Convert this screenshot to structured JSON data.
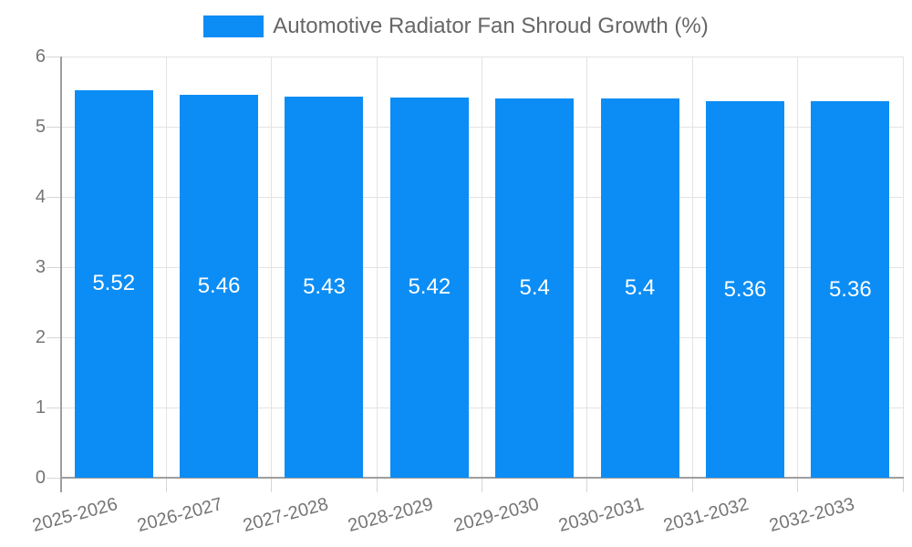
{
  "chart_data": {
    "type": "bar",
    "title": "Automotive Radiator Fan Shroud Growth (%)",
    "categories": [
      "2025-2026",
      "2026-2027",
      "2027-2028",
      "2028-2029",
      "2029-2030",
      "2030-2031",
      "2031-2032",
      "2032-2033"
    ],
    "values": [
      5.52,
      5.46,
      5.43,
      5.42,
      5.4,
      5.4,
      5.36,
      5.36
    ],
    "value_labels": [
      "5.52",
      "5.46",
      "5.43",
      "5.42",
      "5.4",
      "5.4",
      "5.36",
      "5.36"
    ],
    "xlabel": "",
    "ylabel": "",
    "ylim": [
      0,
      6
    ],
    "yticks": [
      0,
      1,
      2,
      3,
      4,
      5,
      6
    ],
    "grid": true,
    "legend_position": "top-center",
    "colors": {
      "bar": "#0b8df5",
      "value_label": "#ffffff",
      "tick_text": "#757575",
      "title_text": "#666666",
      "grid_line": "#e3e3e3",
      "tick_line": "#d6d6d6",
      "axis_line": "#9e9e9e",
      "background": "#ffffff"
    }
  }
}
